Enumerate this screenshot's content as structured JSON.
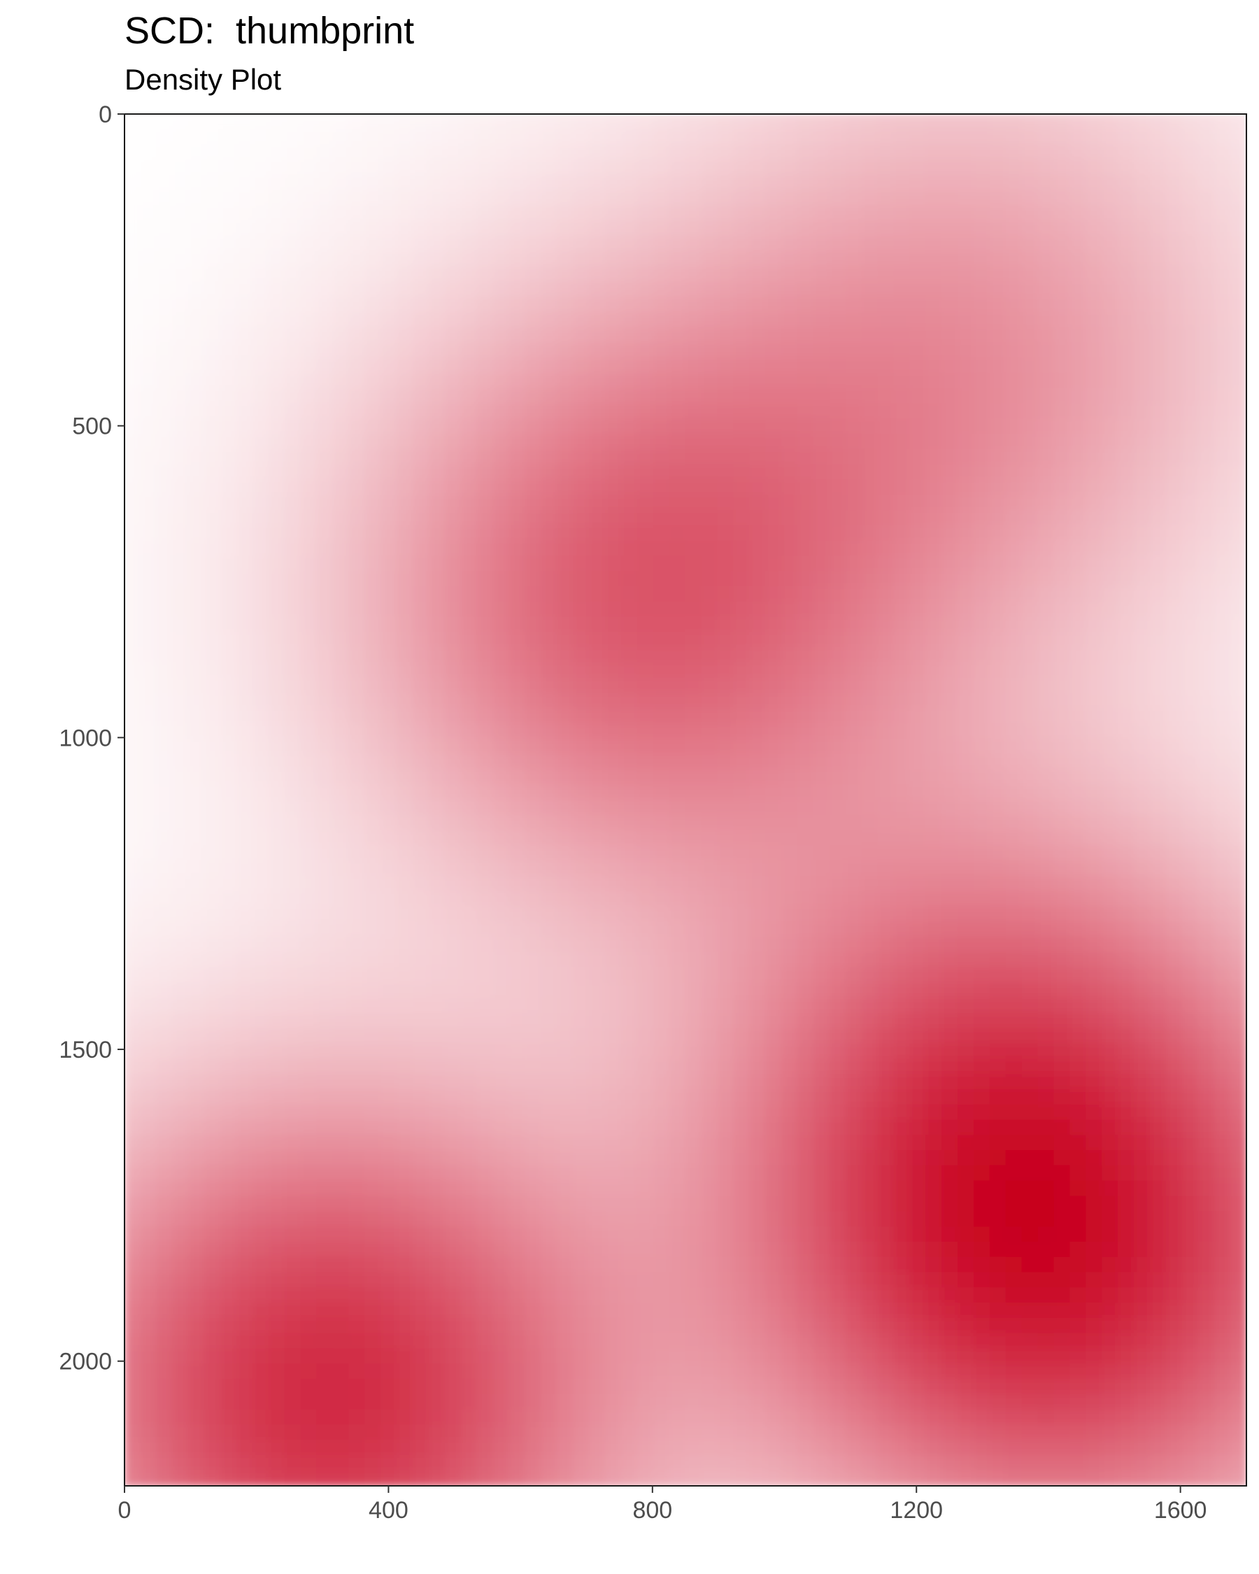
{
  "chart_data": {
    "type": "heatmap",
    "title": "SCD:  thumbprint",
    "subtitle": "Density Plot",
    "xlabel": "",
    "ylabel": "",
    "xlim": [
      0,
      1700
    ],
    "ylim": [
      2200,
      0
    ],
    "y_axis_reversed": true,
    "x_ticks": [
      0,
      400,
      800,
      1200,
      1600
    ],
    "y_ticks": [
      0,
      500,
      1000,
      1500,
      2000
    ],
    "grid": false,
    "legend": "none",
    "color_low": "#ffffff",
    "color_high": "#c8001e",
    "density_peaks": [
      {
        "x": 310,
        "y": 2050,
        "density": 1.0
      },
      {
        "x": 780,
        "y": 770,
        "density": 0.72
      },
      {
        "x": 1320,
        "y": 1550,
        "density": 0.58
      },
      {
        "x": 1330,
        "y": 1870,
        "density": 0.55
      },
      {
        "x": 1290,
        "y": 380,
        "density": 0.42
      },
      {
        "x": 1550,
        "y": 1900,
        "density": 0.35
      }
    ]
  }
}
